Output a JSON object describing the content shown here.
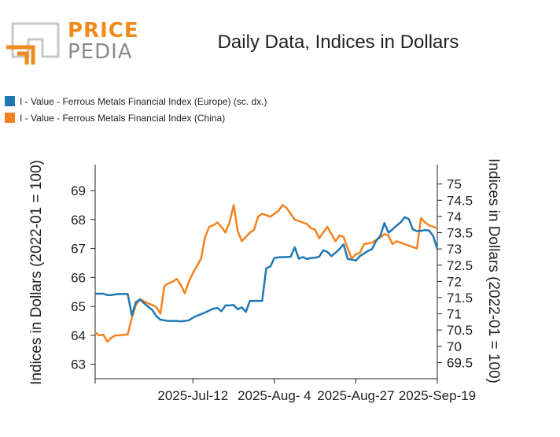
{
  "logo": {
    "line1": "PRICE",
    "line2": "PEDIA"
  },
  "title": "Daily Data, Indices in Dollars",
  "colors": {
    "europe": "#1f77b4",
    "china": "#f58220",
    "axis": "#222222"
  },
  "legend": [
    {
      "label": "I - Value - Ferrous Metals Financial Index (Europe) (sc. dx.)",
      "color": "#1f77b4"
    },
    {
      "label": "I - Value - Ferrous Metals Financial Index (China)",
      "color": "#f58220"
    }
  ],
  "chart_data": {
    "type": "line",
    "title": "Daily Data, Indices in Dollars",
    "xlabel": "",
    "ylabel_left": "Indices in Dollars (2022-01 = 100)",
    "ylabel_right": "Indices in Dollars (2022-01 = 100)",
    "x_range": [
      0,
      84
    ],
    "x_ticks": [
      {
        "pos": 0,
        "label": ""
      },
      {
        "pos": 24,
        "label": "2025-Jul-12"
      },
      {
        "pos": 44,
        "label": "2025-Aug- 4"
      },
      {
        "pos": 64,
        "label": "2025-Aug-27"
      },
      {
        "pos": 84,
        "label": "2025-Sep-19"
      }
    ],
    "y_left": {
      "range": [
        62.5,
        69.9
      ],
      "ticks": [
        63,
        64,
        65,
        66,
        67,
        68,
        69
      ]
    },
    "y_right": {
      "range": [
        69.0,
        75.6
      ],
      "ticks": [
        "69.5",
        "70",
        "70.5",
        "71",
        "71.5",
        "72",
        "72.5",
        "73",
        "73.5",
        "74",
        "74.5",
        "75"
      ]
    },
    "series": [
      {
        "name": "I - Value - Ferrous Metals Financial Index (Europe) (sc. dx.)",
        "axis": "right",
        "x": [
          0,
          1,
          2,
          3,
          4,
          5,
          6,
          7,
          8,
          9,
          10,
          11,
          12,
          13,
          14,
          15,
          16,
          17,
          18,
          19,
          20,
          21,
          22,
          23,
          24,
          25,
          26,
          27,
          28,
          29,
          30,
          31,
          32,
          33,
          34,
          35,
          36,
          37,
          38,
          39,
          40,
          41,
          42,
          43,
          44,
          45,
          46,
          47,
          48,
          49,
          50,
          51,
          52,
          53,
          54,
          55,
          56,
          57,
          58,
          59,
          60,
          61,
          62,
          63,
          64,
          65,
          66,
          67,
          68,
          69,
          70,
          71,
          72,
          73,
          74,
          75,
          76,
          77,
          78,
          79,
          80,
          81,
          82,
          83,
          84
        ],
        "y": [
          71.62,
          71.62,
          71.62,
          71.58,
          71.58,
          71.6,
          71.61,
          71.61,
          71.61,
          70.96,
          71.36,
          71.44,
          71.33,
          71.22,
          71.12,
          70.93,
          70.82,
          70.8,
          70.78,
          70.78,
          70.78,
          70.77,
          70.78,
          70.8,
          70.88,
          70.94,
          70.99,
          71.04,
          71.1,
          71.16,
          71.18,
          71.08,
          71.26,
          71.26,
          71.27,
          71.14,
          71.2,
          71.06,
          71.4,
          71.4,
          71.4,
          71.4,
          72.4,
          72.46,
          72.72,
          72.74,
          72.75,
          72.75,
          72.76,
          73.05,
          72.7,
          72.75,
          72.69,
          72.72,
          72.73,
          72.76,
          72.96,
          72.91,
          72.78,
          72.88,
          73.0,
          73.14,
          72.69,
          72.67,
          72.64,
          72.78,
          72.86,
          72.94,
          73.0,
          73.25,
          73.4,
          73.8,
          73.5,
          73.6,
          73.72,
          73.82,
          73.98,
          73.92,
          73.6,
          73.55,
          73.56,
          73.58,
          73.57,
          73.4,
          73.0
        ]
      },
      {
        "name": "I - Value - Ferrous Metals Financial Index (China)",
        "axis": "left",
        "x": [
          0,
          1,
          2,
          3,
          4,
          5,
          6,
          7,
          8,
          9,
          10,
          11,
          12,
          13,
          14,
          15,
          16,
          17,
          18,
          19,
          20,
          21,
          22,
          23,
          24,
          25,
          26,
          27,
          28,
          29,
          30,
          31,
          32,
          33,
          34,
          35,
          36,
          37,
          38,
          39,
          40,
          41,
          42,
          43,
          44,
          45,
          46,
          47,
          48,
          49,
          50,
          51,
          52,
          53,
          54,
          55,
          56,
          57,
          58,
          59,
          60,
          61,
          62,
          63,
          64,
          65,
          66,
          67,
          68,
          69,
          70,
          71,
          72,
          73,
          74,
          75,
          76,
          77,
          78,
          79,
          80,
          81,
          82,
          83,
          84
        ],
        "y": [
          64.1,
          64.0,
          64.02,
          63.78,
          63.92,
          64.0,
          64.0,
          64.02,
          64.03,
          64.6,
          65.05,
          65.25,
          65.18,
          65.1,
          65.05,
          64.98,
          64.75,
          65.7,
          65.8,
          65.85,
          65.95,
          65.75,
          65.45,
          65.85,
          66.15,
          66.4,
          66.65,
          67.4,
          67.75,
          67.8,
          67.9,
          67.75,
          67.55,
          67.9,
          68.5,
          67.6,
          67.25,
          67.4,
          67.55,
          67.65,
          68.1,
          68.2,
          68.15,
          68.1,
          68.2,
          68.3,
          68.5,
          68.4,
          68.2,
          68.0,
          67.95,
          67.9,
          67.85,
          67.7,
          67.65,
          67.35,
          67.55,
          67.75,
          67.5,
          67.25,
          67.45,
          67.4,
          67.0,
          66.65,
          66.8,
          66.85,
          67.15,
          67.18,
          67.2,
          67.3,
          67.38,
          67.5,
          67.45,
          67.15,
          67.25,
          67.2,
          67.15,
          67.1,
          67.05,
          67.0,
          68.05,
          67.9,
          67.8,
          67.75,
          67.7
        ]
      }
    ],
    "grid": false,
    "legend_position": "top-left"
  }
}
